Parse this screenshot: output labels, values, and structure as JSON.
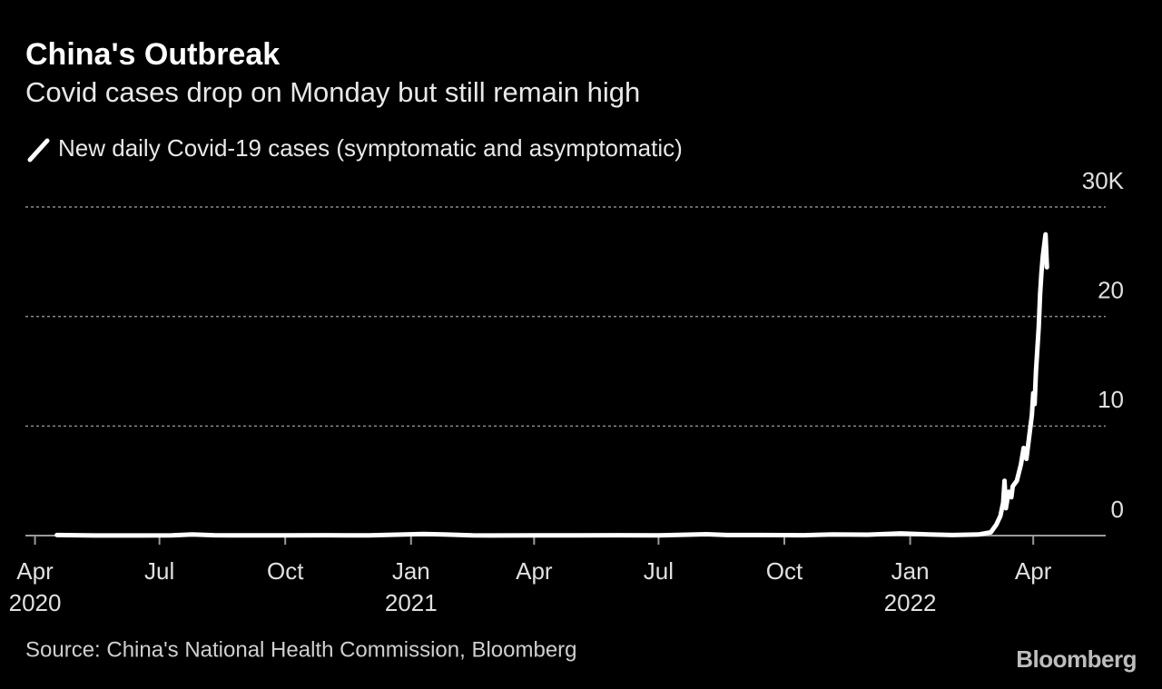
{
  "chart_data": {
    "type": "line",
    "title": "China's Outbreak",
    "subtitle": "Covid cases drop on Monday but still remain high",
    "source": "Source: China's National Health Commission, Bloomberg",
    "brand": "Bloomberg",
    "x": [
      "2020-04-17",
      "2020-05-15",
      "2020-06-15",
      "2020-07-10",
      "2020-07-25",
      "2020-08-10",
      "2020-09-01",
      "2020-10-01",
      "2020-11-01",
      "2020-12-01",
      "2021-01-10",
      "2021-01-25",
      "2021-02-15",
      "2021-03-01",
      "2021-04-01",
      "2021-05-01",
      "2021-06-01",
      "2021-07-01",
      "2021-08-05",
      "2021-08-20",
      "2021-09-15",
      "2021-10-15",
      "2021-11-05",
      "2021-12-01",
      "2021-12-25",
      "2022-01-15",
      "2022-02-01",
      "2022-02-20",
      "2022-03-01",
      "2022-03-05",
      "2022-03-08",
      "2022-03-10",
      "2022-03-11",
      "2022-03-12",
      "2022-03-14",
      "2022-03-16",
      "2022-03-17",
      "2022-03-20",
      "2022-03-23",
      "2022-03-25",
      "2022-03-27",
      "2022-03-29",
      "2022-03-31",
      "2022-04-01",
      "2022-04-02",
      "2022-04-03",
      "2022-04-05",
      "2022-04-06",
      "2022-04-07",
      "2022-04-08",
      "2022-04-09",
      "2022-04-10",
      "2022-04-11"
    ],
    "series": [
      {
        "name": "New daily Covid-19 cases (symptomatic and asymptomatic)",
        "color": "#ffffff",
        "values": [
          0.05,
          0.01,
          0.01,
          0.02,
          0.1,
          0.03,
          0.02,
          0.02,
          0.03,
          0.02,
          0.14,
          0.1,
          0.02,
          0.01,
          0.02,
          0.02,
          0.03,
          0.02,
          0.12,
          0.05,
          0.05,
          0.03,
          0.1,
          0.08,
          0.2,
          0.1,
          0.05,
          0.1,
          0.3,
          1.0,
          1.8,
          3.0,
          5.0,
          2.5,
          4.0,
          3.5,
          4.5,
          5.0,
          6.5,
          8.0,
          7.0,
          9.0,
          11.0,
          13.0,
          12.0,
          15.0,
          19.0,
          22.0,
          24.0,
          25.5,
          26.5,
          27.5,
          24.5
        ]
      }
    ],
    "xlim": [
      "2020-03-25",
      "2022-05-24"
    ],
    "xticks": [
      {
        "value": "2020-04-01",
        "label": [
          "Apr",
          "2020"
        ]
      },
      {
        "value": "2020-07-01",
        "label": [
          "Jul"
        ]
      },
      {
        "value": "2020-10-01",
        "label": [
          "Oct"
        ]
      },
      {
        "value": "2021-01-01",
        "label": [
          "Jan",
          "2021"
        ]
      },
      {
        "value": "2021-04-01",
        "label": [
          "Apr"
        ]
      },
      {
        "value": "2021-07-01",
        "label": [
          "Jul"
        ]
      },
      {
        "value": "2021-10-01",
        "label": [
          "Oct"
        ]
      },
      {
        "value": "2022-01-01",
        "label": [
          "Jan",
          "2022"
        ]
      },
      {
        "value": "2022-04-01",
        "label": [
          "Apr"
        ]
      }
    ],
    "ylim": [
      0,
      30
    ],
    "yticks": [
      0,
      10,
      20,
      {
        "value": 30,
        "label": "30K"
      }
    ],
    "grid": true
  }
}
